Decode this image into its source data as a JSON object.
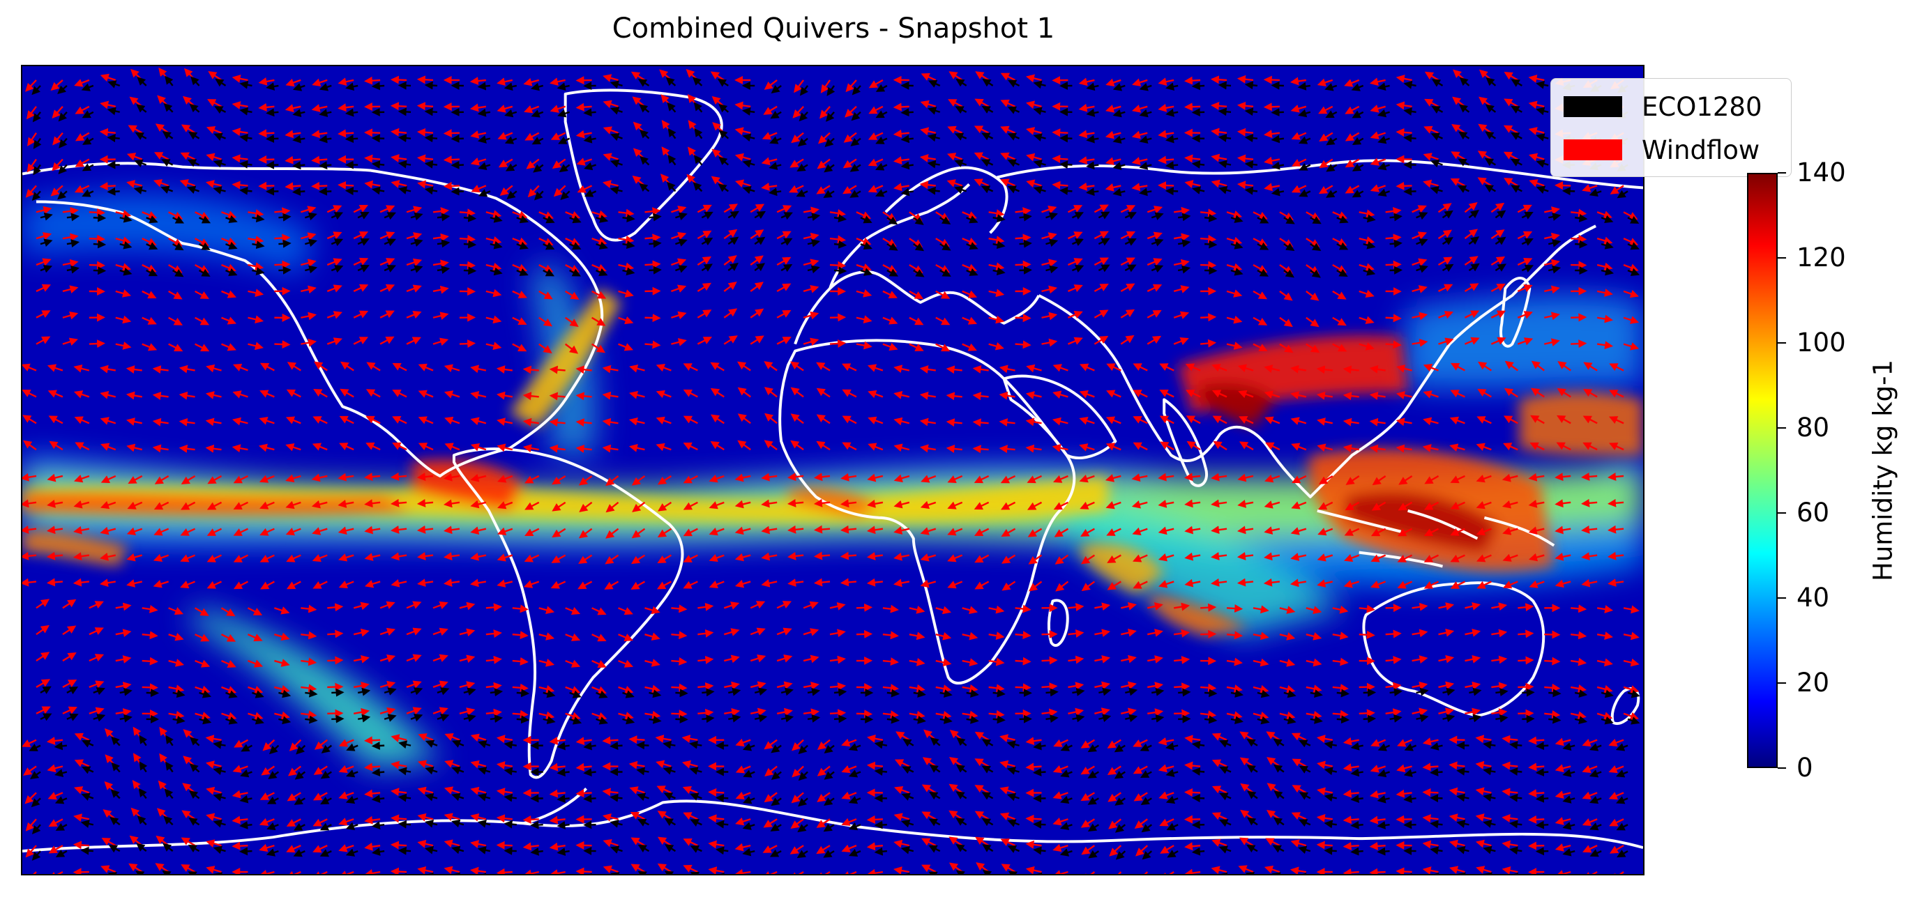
{
  "title": "Combined Quivers - Snapshot 1",
  "legend": [
    {
      "label": "ECO1280",
      "color": "#000000"
    },
    {
      "label": "Windflow",
      "color": "#ff0000"
    }
  ],
  "colorbar": {
    "label": "Humidity kg kg-1",
    "ticks": [
      "0",
      "20",
      "40",
      "60",
      "80",
      "100",
      "120",
      "140"
    ],
    "range": [
      0,
      140
    ],
    "colormap": "jet"
  },
  "chart_data": {
    "type": "heatmap",
    "title": "Combined Quivers - Snapshot 1",
    "xlabel": "",
    "ylabel": "",
    "xlim": [
      -180,
      180
    ],
    "ylim": [
      -90,
      90
    ],
    "field": "Humidity kg kg-1",
    "field_range": [
      0,
      140
    ],
    "colormap": "jet",
    "overlays": [
      "coastlines (white)",
      "quiver arrows ECO1280 (black)",
      "quiver arrows Windflow (red)"
    ],
    "legend_placement": "top-right",
    "series": [
      {
        "name": "ECO1280",
        "color": "#000000"
      },
      {
        "name": "Windflow",
        "color": "#ff0000"
      }
    ]
  }
}
